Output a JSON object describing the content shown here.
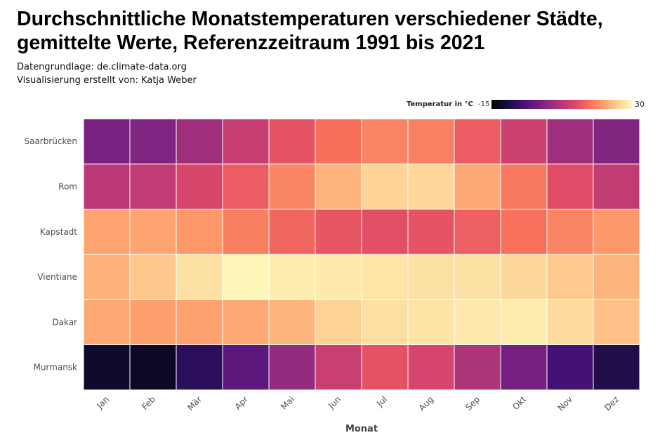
{
  "title": "Durchschnittliche Monatstemperaturen verschiedener Städte, gemittelte Werte, Referenzzeitraum 1991 bis 2021",
  "subtitle1": "Datengrundlage: de.climate-data.org",
  "subtitle2": "Visualisierung erstellt von: Katja Weber",
  "legend": {
    "title": "Temperatur in °C",
    "min_label": "-15",
    "max_label": "30"
  },
  "chart_data": {
    "type": "heatmap",
    "title": "Durchschnittliche Monatstemperaturen verschiedener Städte, gemittelte Werte, Referenzzeitraum 1991 bis 2021",
    "xlabel": "Monat",
    "ylabel": "",
    "x_categories": [
      "Jan",
      "Feb",
      "Mär",
      "Apr",
      "Mai",
      "Jun",
      "Jul",
      "Aug",
      "Sep",
      "Okt",
      "Nov",
      "Dez"
    ],
    "y_categories": [
      "Saarbrücken",
      "Rom",
      "Kapstadt",
      "Vientiane",
      "Dakar",
      "Murmansk"
    ],
    "values": [
      [
        0.7,
        1.5,
        5.0,
        9.3,
        13.3,
        16.5,
        18.5,
        18.0,
        14.3,
        9.9,
        5.0,
        1.8
      ],
      [
        7.8,
        8.6,
        11.2,
        14.3,
        18.6,
        23.0,
        25.9,
        26.2,
        21.8,
        17.2,
        12.4,
        8.8
      ],
      [
        21.5,
        21.6,
        20.3,
        17.9,
        15.4,
        13.5,
        12.8,
        13.2,
        14.6,
        16.6,
        18.5,
        20.3
      ],
      [
        22.7,
        24.8,
        27.2,
        29.4,
        28.5,
        28.1,
        27.6,
        27.3,
        27.2,
        26.4,
        24.9,
        23.0
      ],
      [
        21.8,
        21.1,
        21.3,
        21.8,
        23.1,
        25.9,
        27.1,
        27.5,
        28.1,
        28.3,
        26.6,
        24.2
      ],
      [
        -11.6,
        -12.0,
        -7.7,
        -2.4,
        3.7,
        9.5,
        13.1,
        11.1,
        6.7,
        0.4,
        -5.0,
        -8.9
      ]
    ],
    "color_scale": {
      "name": "magma",
      "min": -15,
      "max": 30
    },
    "grid": false,
    "legend_position": "top-right"
  }
}
